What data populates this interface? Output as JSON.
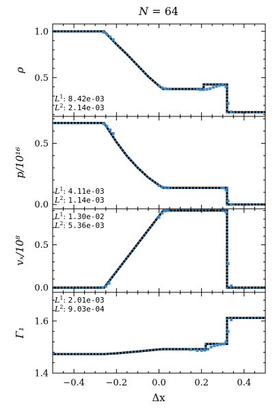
{
  "title": "N = 64",
  "xlabel": "Δx",
  "x_ticks": [
    "−0.4",
    "−0.2",
    "0.0",
    "0.2",
    "0.4"
  ],
  "chart_data": [
    {
      "type": "line",
      "ylabel": "ρ",
      "xlim": [
        -0.5,
        0.5
      ],
      "ylim": [
        0.08,
        1.08
      ],
      "y_ticks": [
        {
          "v": 0.5,
          "label": "0.5"
        },
        {
          "v": 1.0,
          "label": "1.0"
        }
      ],
      "errors": [
        "8.42e-03",
        "2.14e-03"
      ],
      "series": [
        {
          "kind": "exact",
          "x": [
            -0.5,
            -0.258,
            -0.2,
            -0.15,
            -0.1,
            -0.05,
            0.0,
            0.02,
            0.21,
            0.21,
            0.32,
            0.32,
            0.5
          ],
          "y": [
            1.0,
            1.0,
            0.86,
            0.75,
            0.63,
            0.51,
            0.41,
            0.376,
            0.376,
            0.426,
            0.426,
            0.125,
            0.125
          ]
        },
        {
          "kind": "numerical",
          "x": [
            -0.26,
            -0.245,
            -0.23,
            -0.215,
            0.0,
            0.015,
            0.03,
            0.045,
            0.18,
            0.195,
            0.21,
            0.225,
            0.24,
            0.255,
            0.27,
            0.285,
            0.3,
            0.315,
            0.325,
            0.34
          ],
          "y": [
            0.99,
            0.97,
            0.94,
            0.91,
            0.41,
            0.39,
            0.38,
            0.376,
            0.376,
            0.37,
            0.37,
            0.373,
            0.38,
            0.395,
            0.405,
            0.415,
            0.42,
            0.4,
            0.22,
            0.13
          ]
        }
      ]
    },
    {
      "type": "line",
      "ylabel": "p/10¹⁶",
      "xlim": [
        -0.5,
        0.5
      ],
      "ylim": [
        -0.035,
        0.72
      ],
      "y_ticks": [
        {
          "v": 0.0,
          "label": "0.0"
        },
        {
          "v": 0.5,
          "label": "0.5"
        }
      ],
      "errors": [
        "4.11e-03",
        "1.14e-03"
      ],
      "series": [
        {
          "kind": "exact",
          "x": [
            -0.5,
            -0.258,
            -0.2,
            -0.15,
            -0.1,
            -0.05,
            0.0,
            0.02,
            0.32,
            0.32,
            0.5
          ],
          "y": [
            0.666,
            0.666,
            0.51,
            0.395,
            0.3,
            0.22,
            0.158,
            0.136,
            0.136,
            0.0,
            0.0
          ]
        },
        {
          "kind": "numerical",
          "x": [
            -0.26,
            -0.245,
            -0.23,
            -0.215,
            0.0,
            0.015,
            0.03,
            0.045,
            0.3,
            0.315,
            0.325,
            0.34
          ],
          "y": [
            0.66,
            0.64,
            0.61,
            0.58,
            0.155,
            0.143,
            0.138,
            0.136,
            0.136,
            0.12,
            0.03,
            0.0
          ]
        }
      ]
    },
    {
      "type": "line",
      "ylabel": "vₓ/10⁸",
      "xlim": [
        -0.5,
        0.5
      ],
      "ylim": [
        -0.055,
        0.92
      ],
      "y_ticks": [
        {
          "v": 0.0,
          "label": "0.0"
        },
        {
          "v": 0.5,
          "label": "0.5"
        }
      ],
      "errors": [
        "1.30e-02",
        "5.36e-03"
      ],
      "series": [
        {
          "kind": "exact",
          "x": [
            -0.5,
            -0.258,
            0.02,
            0.32,
            0.32,
            0.5
          ],
          "y": [
            0.0,
            0.0,
            0.9,
            0.9,
            0.0,
            0.0
          ]
        },
        {
          "kind": "numerical",
          "x": [
            -0.265,
            -0.25,
            -0.235,
            0.0,
            0.015,
            0.03,
            0.045,
            0.3,
            0.315,
            0.325,
            0.34
          ],
          "y": [
            0.0,
            0.015,
            0.05,
            0.82,
            0.87,
            0.895,
            0.9,
            0.9,
            0.88,
            0.28,
            0.02
          ]
        }
      ]
    },
    {
      "type": "line",
      "ylabel": "Γ₁",
      "xlim": [
        -0.5,
        0.5
      ],
      "ylim": [
        1.4,
        1.71
      ],
      "y_ticks": [
        {
          "v": 1.4,
          "label": "1.4"
        },
        {
          "v": 1.6,
          "label": "1.6"
        }
      ],
      "errors": [
        "2.01e-03",
        "9.03e-04"
      ],
      "series": [
        {
          "kind": "exact",
          "x": [
            -0.5,
            -0.258,
            -0.2,
            -0.1,
            0.0,
            0.02,
            0.22,
            0.22,
            0.32,
            0.32,
            0.5
          ],
          "y": [
            1.473,
            1.473,
            1.476,
            1.483,
            1.491,
            1.492,
            1.492,
            1.512,
            1.512,
            1.612,
            1.612
          ]
        },
        {
          "kind": "numerical",
          "x": [
            0.15,
            0.18,
            0.2,
            0.215,
            0.23,
            0.245,
            0.26,
            0.275,
            0.29,
            0.305,
            0.315,
            0.325,
            0.34
          ],
          "y": [
            1.49,
            1.487,
            1.487,
            1.488,
            1.492,
            1.5,
            1.505,
            1.508,
            1.51,
            1.512,
            1.52,
            1.56,
            1.605
          ]
        }
      ]
    }
  ]
}
